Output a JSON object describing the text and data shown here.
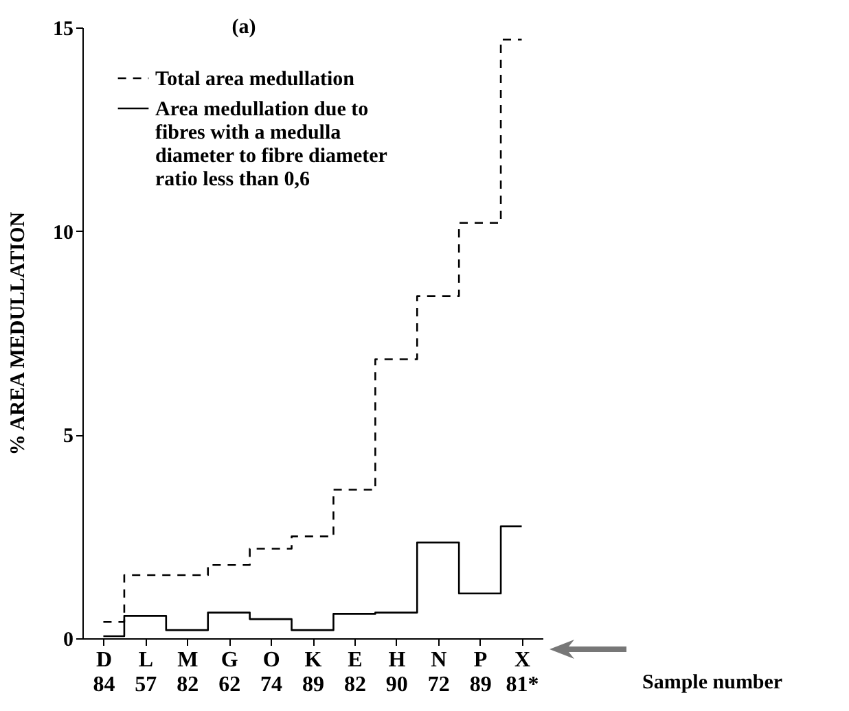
{
  "chart_data": {
    "type": "step",
    "title": "(a)",
    "xlabel": "Sample number",
    "ylabel": "% AREA MEDULLATION",
    "categories": [
      "D 84",
      "L 57",
      "M 82",
      "G 62",
      "O 74",
      "K 89",
      "E 82",
      "H 90",
      "N 72",
      "P 89",
      "X 81*"
    ],
    "series": [
      {
        "name": "Total area medullation",
        "color": "#000000",
        "line_style": "dashed",
        "values": [
          0.4,
          1.55,
          1.55,
          1.8,
          2.2,
          2.5,
          3.65,
          6.85,
          8.4,
          10.2,
          14.7
        ]
      },
      {
        "name": "Area medullation due to fibres with a medulla diameter to fibre diameter ratio less than 0,6",
        "color": "#000000",
        "line_style": "solid",
        "values": [
          0.05,
          0.55,
          0.2,
          0.63,
          0.47,
          0.2,
          0.6,
          0.63,
          2.35,
          1.1,
          2.75
        ]
      }
    ],
    "ylim": [
      0,
      15
    ],
    "yticks": [
      0,
      5,
      10,
      15
    ],
    "legend": "top left"
  }
}
